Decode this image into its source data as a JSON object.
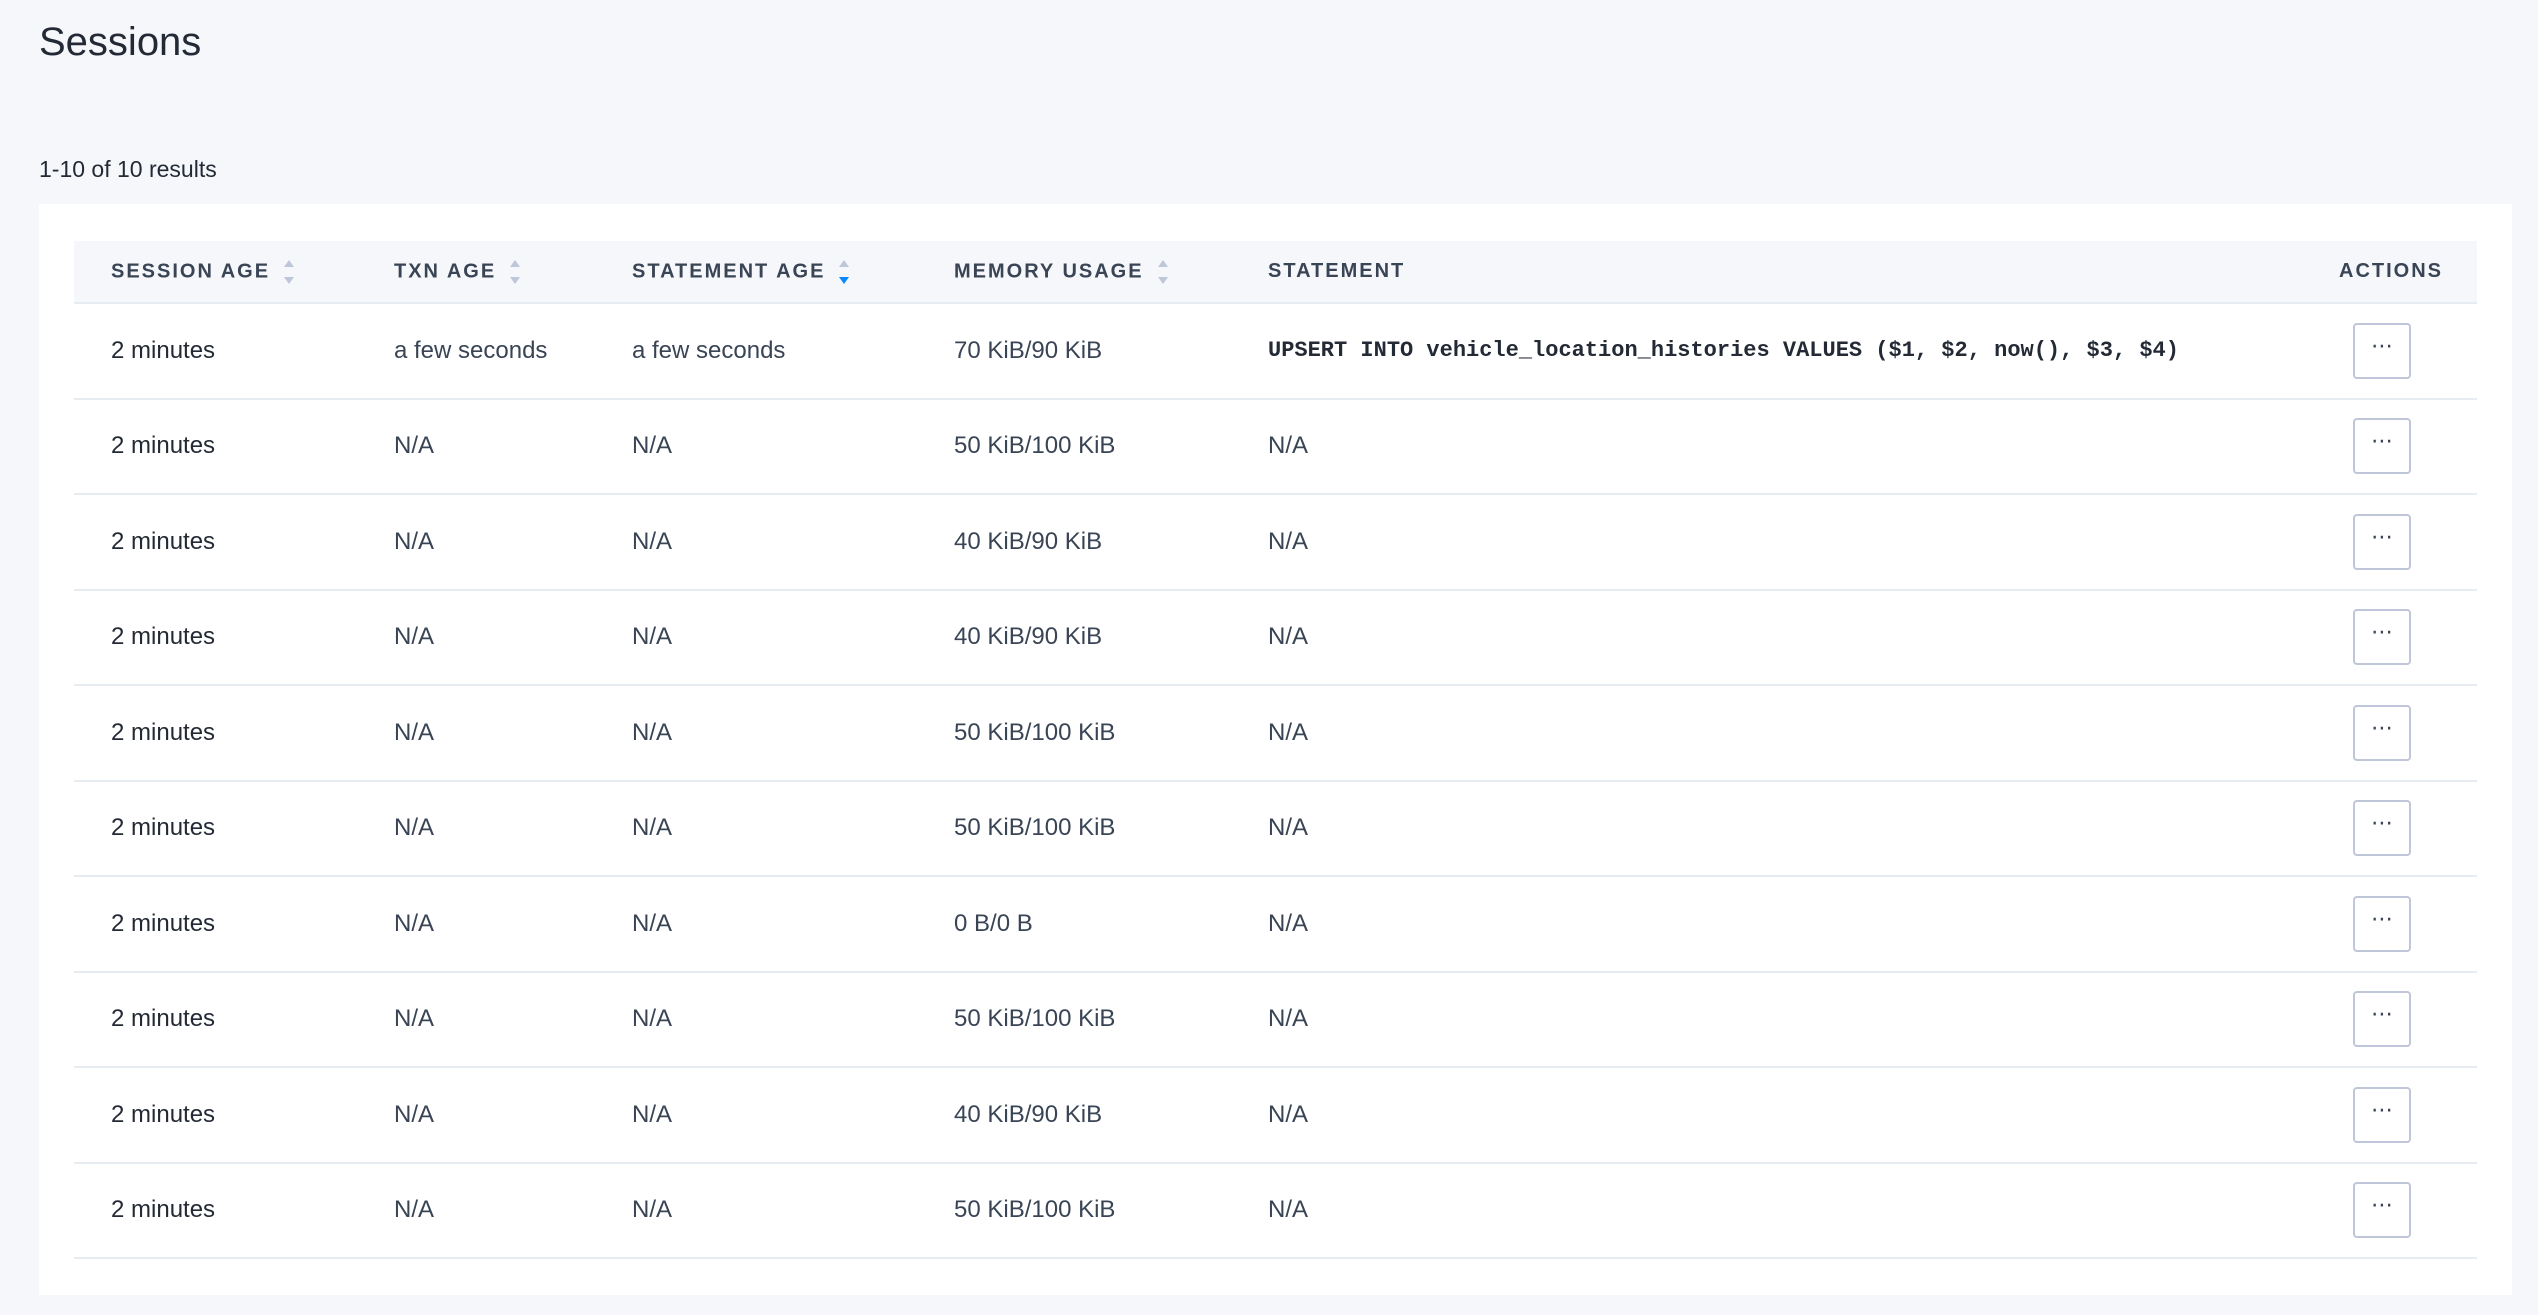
{
  "page": {
    "title": "Sessions",
    "results_count": "1-10 of 10 results"
  },
  "table": {
    "headers": {
      "session_age": "SESSION AGE",
      "txn_age": "TXN AGE",
      "statement_age": "STATEMENT AGE",
      "memory_usage": "MEMORY USAGE",
      "statement": "STATEMENT",
      "actions": "ACTIONS"
    },
    "sort": {
      "column": "statement_age",
      "direction": "descending",
      "active_color": "#0788ff"
    },
    "action_button_label": "⋯",
    "rows": [
      {
        "session_age": "2 minutes",
        "txn_age": "a few seconds",
        "statement_age": "a few seconds",
        "memory_usage": "70 KiB/90 KiB",
        "statement": "UPSERT INTO vehicle_location_histories VALUES ($1, $2, now(), $3, $4)"
      },
      {
        "session_age": "2 minutes",
        "txn_age": "N/A",
        "statement_age": "N/A",
        "memory_usage": "50 KiB/100 KiB",
        "statement": "N/A"
      },
      {
        "session_age": "2 minutes",
        "txn_age": "N/A",
        "statement_age": "N/A",
        "memory_usage": "40 KiB/90 KiB",
        "statement": "N/A"
      },
      {
        "session_age": "2 minutes",
        "txn_age": "N/A",
        "statement_age": "N/A",
        "memory_usage": "40 KiB/90 KiB",
        "statement": "N/A"
      },
      {
        "session_age": "2 minutes",
        "txn_age": "N/A",
        "statement_age": "N/A",
        "memory_usage": "50 KiB/100 KiB",
        "statement": "N/A"
      },
      {
        "session_age": "2 minutes",
        "txn_age": "N/A",
        "statement_age": "N/A",
        "memory_usage": "50 KiB/100 KiB",
        "statement": "N/A"
      },
      {
        "session_age": "2 minutes",
        "txn_age": "N/A",
        "statement_age": "N/A",
        "memory_usage": "0 B/0 B",
        "statement": "N/A"
      },
      {
        "session_age": "2 minutes",
        "txn_age": "N/A",
        "statement_age": "N/A",
        "memory_usage": "50 KiB/100 KiB",
        "statement": "N/A"
      },
      {
        "session_age": "2 minutes",
        "txn_age": "N/A",
        "statement_age": "N/A",
        "memory_usage": "40 KiB/90 KiB",
        "statement": "N/A"
      },
      {
        "session_age": "2 minutes",
        "txn_age": "N/A",
        "statement_age": "N/A",
        "memory_usage": "50 KiB/100 KiB",
        "statement": "N/A"
      }
    ]
  }
}
